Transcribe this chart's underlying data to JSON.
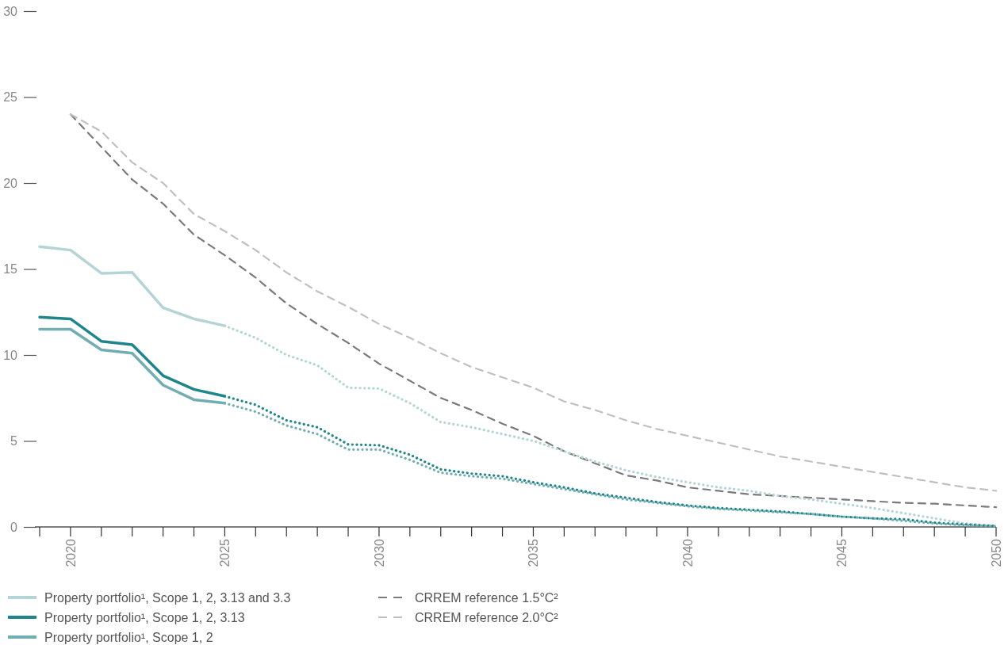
{
  "chart_data": {
    "type": "line",
    "xlim": [
      2019,
      2050
    ],
    "xticks": [
      {
        "value": 2019,
        "label": null
      },
      2020,
      {
        "value": 2021,
        "label": null
      },
      {
        "value": 2022,
        "label": null
      },
      {
        "value": 2023,
        "label": null
      },
      {
        "value": 2024,
        "label": null
      },
      2025,
      {
        "value": 2026,
        "label": null
      },
      {
        "value": 2027,
        "label": null
      },
      {
        "value": 2028,
        "label": null
      },
      {
        "value": 2029,
        "label": null
      },
      2030,
      {
        "value": 2031,
        "label": null
      },
      {
        "value": 2032,
        "label": null
      },
      {
        "value": 2033,
        "label": null
      },
      {
        "value": 2034,
        "label": null
      },
      2035,
      {
        "value": 2036,
        "label": null
      },
      {
        "value": 2037,
        "label": null
      },
      {
        "value": 2038,
        "label": null
      },
      {
        "value": 2039,
        "label": null
      },
      2040,
      {
        "value": 2041,
        "label": null
      },
      {
        "value": 2042,
        "label": null
      },
      {
        "value": 2043,
        "label": null
      },
      {
        "value": 2044,
        "label": null
      },
      2045,
      {
        "value": 2046,
        "label": null
      },
      {
        "value": 2047,
        "label": null
      },
      {
        "value": 2048,
        "label": null
      },
      {
        "value": 2049,
        "label": null
      },
      2050
    ],
    "ylim": [
      0,
      30
    ],
    "yticks": [
      0,
      5,
      10,
      15,
      20,
      25,
      30
    ],
    "legend": "bottom",
    "series": [
      {
        "name": "Property portfolio¹, Scope 1, 2, 3.13 and 3.3",
        "color": "#b5d4d6",
        "line_style": "solid",
        "x": [
          2019,
          2020,
          2021,
          2022,
          2023,
          2024,
          2025
        ],
        "values": [
          16.3,
          16.1,
          14.75,
          14.8,
          12.75,
          12.1,
          11.7
        ]
      },
      {
        "name": "Property portfolio¹, Scope 1, 2, 3.13",
        "color": "#1e868b",
        "line_style": "solid",
        "x": [
          2019,
          2020,
          2021,
          2022,
          2023,
          2024,
          2025
        ],
        "values": [
          12.2,
          12.1,
          10.8,
          10.6,
          8.8,
          8.0,
          7.6
        ]
      },
      {
        "name": "Property portfolio¹, Scope 1, 2",
        "color": "#72aeb1",
        "line_style": "solid",
        "x": [
          2019,
          2020,
          2021,
          2022,
          2023,
          2024,
          2025
        ],
        "values": [
          11.5,
          11.5,
          10.3,
          10.1,
          8.25,
          7.4,
          7.2
        ]
      },
      {
        "name": "CRREM reference 1.5°C²",
        "color": "#7a7a78",
        "line_style": "dashed",
        "x": [
          2020,
          2021,
          2022,
          2023,
          2024,
          2025,
          2026,
          2027,
          2028,
          2029,
          2030,
          2031,
          2032,
          2033,
          2034,
          2035,
          2036,
          2037,
          2038,
          2039,
          2040,
          2041,
          2042,
          2043,
          2044,
          2045,
          2046,
          2047,
          2048,
          2049,
          2050
        ],
        "values": [
          24.0,
          22.1,
          20.2,
          18.8,
          17.0,
          15.8,
          14.5,
          13.0,
          11.8,
          10.7,
          9.5,
          8.5,
          7.5,
          6.8,
          6.0,
          5.3,
          4.4,
          3.7,
          3.0,
          2.7,
          2.3,
          2.1,
          1.9,
          1.8,
          1.7,
          1.6,
          1.5,
          1.4,
          1.35,
          1.25,
          1.15
        ]
      },
      {
        "name": "CRREM reference 2.0°C²",
        "color": "#c0c0c0",
        "line_style": "dashed",
        "x": [
          2020,
          2021,
          2022,
          2023,
          2024,
          2025,
          2026,
          2027,
          2028,
          2029,
          2030,
          2031,
          2032,
          2033,
          2034,
          2035,
          2036,
          2037,
          2038,
          2039,
          2040,
          2041,
          2042,
          2043,
          2044,
          2045,
          2046,
          2047,
          2048,
          2049,
          2050
        ],
        "values": [
          24.0,
          23.0,
          21.2,
          20.0,
          18.2,
          17.2,
          16.1,
          14.8,
          13.7,
          12.8,
          11.8,
          11.0,
          10.1,
          9.3,
          8.7,
          8.1,
          7.3,
          6.8,
          6.2,
          5.7,
          5.3,
          4.9,
          4.5,
          4.1,
          3.8,
          3.5,
          3.2,
          2.9,
          2.6,
          2.3,
          2.1
        ]
      },
      {
        "color": "#b5d4d6",
        "line_style": "dotted",
        "x": [
          2025,
          2026,
          2027,
          2028,
          2029,
          2030,
          2031,
          2032,
          2033,
          2034,
          2035,
          2036,
          2037,
          2038,
          2039,
          2040,
          2041,
          2042,
          2043,
          2044,
          2045,
          2046,
          2047,
          2048,
          2049,
          2050
        ],
        "values": [
          11.7,
          11.0,
          10.0,
          9.4,
          8.1,
          8.05,
          7.2,
          6.1,
          5.8,
          5.4,
          5.0,
          4.4,
          3.8,
          3.3,
          2.9,
          2.6,
          2.3,
          2.1,
          1.8,
          1.6,
          1.35,
          1.1,
          0.8,
          0.5,
          0.2,
          0.05
        ]
      },
      {
        "color": "#1e868b",
        "line_style": "dotted",
        "x": [
          2025,
          2026,
          2027,
          2028,
          2029,
          2030,
          2031,
          2032,
          2033,
          2034,
          2035,
          2036,
          2037,
          2038,
          2039,
          2040,
          2041,
          2042,
          2043,
          2044,
          2045,
          2046,
          2047,
          2048,
          2049,
          2050
        ],
        "values": [
          7.6,
          7.1,
          6.2,
          5.8,
          4.8,
          4.75,
          4.2,
          3.35,
          3.1,
          2.95,
          2.6,
          2.3,
          1.95,
          1.7,
          1.45,
          1.25,
          1.1,
          1.0,
          0.9,
          0.75,
          0.6,
          0.5,
          0.45,
          0.25,
          0.15,
          0.05
        ]
      },
      {
        "color": "#72aeb1",
        "line_style": "dotted",
        "x": [
          2025,
          2026,
          2027,
          2028,
          2029,
          2030,
          2031,
          2032,
          2033,
          2034,
          2035,
          2036,
          2037,
          2038,
          2039,
          2040,
          2041,
          2042,
          2043,
          2044,
          2045,
          2046,
          2047,
          2048,
          2049,
          2050
        ],
        "values": [
          7.2,
          6.7,
          5.9,
          5.4,
          4.5,
          4.5,
          3.9,
          3.15,
          2.95,
          2.8,
          2.5,
          2.2,
          1.9,
          1.6,
          1.4,
          1.2,
          1.05,
          0.95,
          0.85,
          0.75,
          0.6,
          0.5,
          0.35,
          0.2,
          0.1,
          0.05
        ]
      }
    ]
  }
}
